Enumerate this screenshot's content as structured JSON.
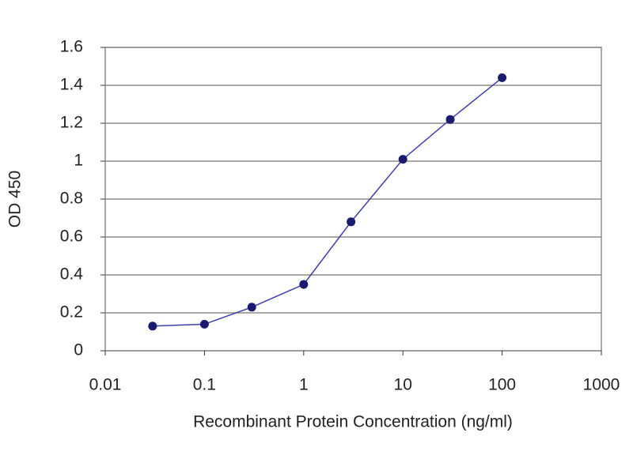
{
  "chart_data": {
    "type": "line",
    "x_label": "Recombinant Protein Concentration (ng/ml)",
    "y_label": "OD 450",
    "x": [
      0.03,
      0.1,
      0.3,
      1,
      3,
      10,
      30,
      100
    ],
    "values": [
      0.13,
      0.14,
      0.23,
      0.35,
      0.68,
      1.01,
      1.22,
      1.44
    ],
    "color": "#3d3da8",
    "marker_color": "#1a1a70",
    "xscale": "log",
    "xlim": [
      0.01,
      1000
    ],
    "xticks": [
      0.01,
      0.1,
      1,
      10,
      100,
      1000
    ],
    "ylim": [
      0,
      1.6
    ],
    "yticks": [
      0,
      0.2,
      0.4,
      0.6,
      0.8,
      1,
      1.2,
      1.4,
      1.6
    ],
    "grid": true
  }
}
